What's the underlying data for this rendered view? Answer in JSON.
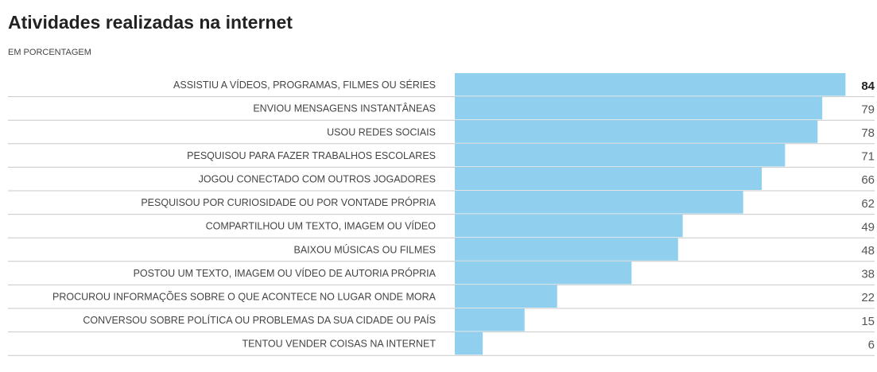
{
  "chart_data": {
    "type": "bar",
    "orientation": "horizontal",
    "title": "Atividades realizadas na internet",
    "subtitle": "EM PORCENTAGEM",
    "color": "#90d0ee",
    "categories": [
      "ASSISTIU A VÍDEOS, PROGRAMAS, FILMES OU SÉRIES",
      "ENVIOU MENSAGENS INSTANTÂNEAS",
      "USOU REDES SOCIAIS",
      "PESQUISOU PARA FAZER TRABALHOS ESCOLARES",
      "JOGOU CONECTADO COM OUTROS JOGADORES",
      "PESQUISOU POR CURIOSIDADE OU POR VONTADE PRÓPRIA",
      "COMPARTILHOU UM TEXTO, IMAGEM OU VÍDEO",
      "BAIXOU MÚSICAS OU FILMES",
      "POSTOU UM TEXTO, IMAGEM OU VÍDEO DE AUTORIA PRÓPRIA",
      "PROCUROU INFORMAÇÕES SOBRE O QUE ACONTECE NO LUGAR ONDE MORA",
      "CONVERSOU SOBRE POLÍTICA OU PROBLEMAS DA SUA CIDADE OU PAÍS",
      "TENTOU VENDER COISAS NA INTERNET"
    ],
    "values": [
      84,
      79,
      78,
      71,
      66,
      62,
      49,
      48,
      38,
      22,
      15,
      6
    ]
  }
}
